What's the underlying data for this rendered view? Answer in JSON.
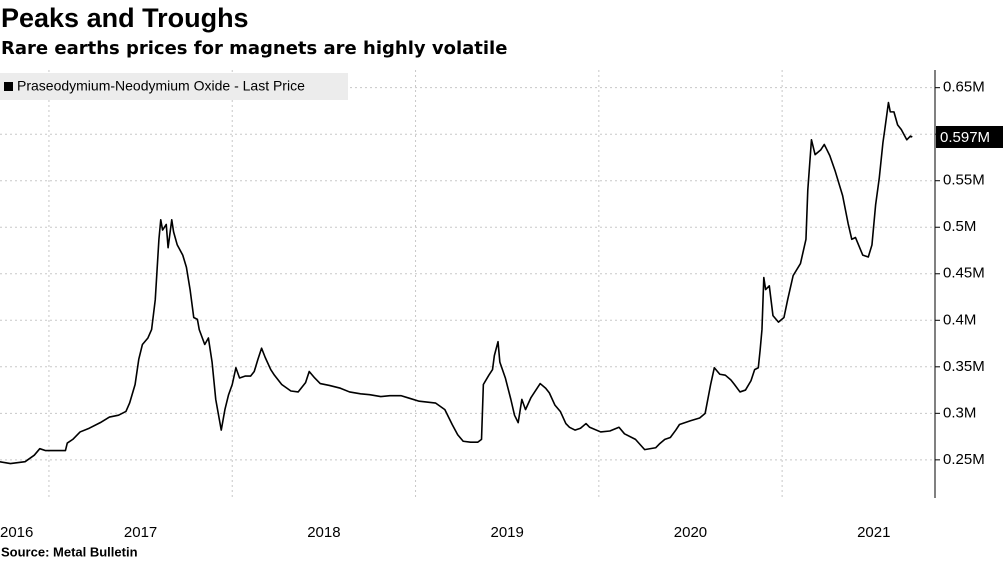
{
  "chart_data": {
    "type": "line",
    "title": "Peaks and Troughs",
    "subtitle": "Rare earths prices for magnets are highly volatile",
    "source": "Source: Metal Bulletin",
    "xlim": [
      2016.733,
      2021.834
    ],
    "xticks": [
      2016,
      2017,
      2018,
      2019,
      2020,
      2021
    ],
    "ylim": [
      209000,
      669000
    ],
    "yticks": [
      {
        "value": 250000,
        "label": "0.25M"
      },
      {
        "value": 300000,
        "label": "0.3M"
      },
      {
        "value": 350000,
        "label": "0.35M"
      },
      {
        "value": 400000,
        "label": "0.4M"
      },
      {
        "value": 450000,
        "label": "0.45M"
      },
      {
        "value": 500000,
        "label": "0.5M"
      },
      {
        "value": 550000,
        "label": "0.55M"
      },
      {
        "value": 600000,
        "label": "0.6M"
      },
      {
        "value": 650000,
        "label": "0.65M"
      }
    ],
    "grid": true,
    "y_axis_side": "right",
    "legend": "top-left",
    "x": [
      2016.73,
      2016.79,
      2016.87,
      2016.92,
      2016.95,
      2016.98,
      2017.01,
      2017.06,
      2017.09,
      2017.1,
      2017.13,
      2017.17,
      2017.22,
      2017.28,
      2017.33,
      2017.38,
      2017.42,
      2017.44,
      2017.47,
      2017.49,
      2017.51,
      2017.54,
      2017.56,
      2017.58,
      2017.6,
      2017.61,
      2017.62,
      2017.64,
      2017.65,
      2017.67,
      2017.68,
      2017.7,
      2017.73,
      2017.75,
      2017.77,
      2017.79,
      2017.81,
      2017.82,
      2017.85,
      2017.87,
      2017.89,
      2017.91,
      2017.93,
      2017.94,
      2017.96,
      2017.98,
      2018.0,
      2018.02,
      2018.04,
      2018.07,
      2018.1,
      2018.12,
      2018.14,
      2018.16,
      2018.18,
      2018.21,
      2018.23,
      2018.27,
      2018.32,
      2018.36,
      2018.4,
      2018.42,
      2018.45,
      2018.48,
      2018.53,
      2018.59,
      2018.64,
      2018.7,
      2018.75,
      2018.81,
      2018.86,
      2018.92,
      2018.97,
      2019.02,
      2019.11,
      2019.16,
      2019.2,
      2019.23,
      2019.26,
      2019.3,
      2019.34,
      2019.36,
      2019.37,
      2019.4,
      2019.42,
      2019.43,
      2019.45,
      2019.46,
      2019.49,
      2019.52,
      2019.54,
      2019.56,
      2019.58,
      2019.6,
      2019.63,
      2019.65,
      2019.68,
      2019.71,
      2019.73,
      2019.76,
      2019.79,
      2019.82,
      2019.84,
      2019.87,
      2019.9,
      2019.93,
      2019.95,
      2020.01,
      2020.06,
      2020.11,
      2020.14,
      2020.2,
      2020.25,
      2020.31,
      2020.33,
      2020.36,
      2020.39,
      2020.42,
      2020.44,
      2020.5,
      2020.55,
      2020.58,
      2020.61,
      2020.63,
      2020.66,
      2020.69,
      2020.72,
      2020.74,
      2020.77,
      2020.8,
      2020.83,
      2020.85,
      2020.87,
      2020.88,
      2020.89,
      2020.9,
      2020.91,
      2020.93,
      2020.95,
      2020.98,
      2021.01,
      2021.03,
      2021.06,
      2021.1,
      2021.13,
      2021.14,
      2021.16,
      2021.18,
      2021.21,
      2021.23,
      2021.26,
      2021.29,
      2021.33,
      2021.36,
      2021.38,
      2021.4,
      2021.44,
      2021.47,
      2021.49,
      2021.51,
      2021.53,
      2021.55,
      2021.56,
      2021.58,
      2021.59,
      2021.61,
      2021.63,
      2021.65,
      2021.68,
      2021.7,
      2021.71
    ],
    "series": [
      {
        "name": "Praseodymium-Neodymium Oxide - Last Price",
        "color": "#000000",
        "last_value_label": "0.597M",
        "values": [
          248000,
          246000,
          248000,
          255000,
          262000,
          260000,
          260000,
          260000,
          260000,
          268000,
          272000,
          280000,
          284000,
          290000,
          296000,
          298000,
          302000,
          311000,
          331000,
          358000,
          374000,
          381000,
          390000,
          422000,
          487000,
          508000,
          497000,
          503000,
          478000,
          508000,
          495000,
          481000,
          470000,
          457000,
          433000,
          403000,
          401000,
          390000,
          374000,
          381000,
          355000,
          315000,
          293000,
          282000,
          304000,
          320000,
          331000,
          349000,
          338000,
          340000,
          340000,
          345000,
          358000,
          370000,
          360000,
          347000,
          341000,
          331000,
          324000,
          323000,
          333000,
          345000,
          338000,
          332000,
          330000,
          327000,
          323000,
          321000,
          320000,
          318000,
          319000,
          319000,
          316000,
          313000,
          311000,
          304000,
          288000,
          277000,
          270000,
          269000,
          269000,
          272000,
          331000,
          341000,
          347000,
          362000,
          377000,
          355000,
          338000,
          315000,
          298000,
          290000,
          315000,
          304000,
          317000,
          323000,
          332000,
          327000,
          322000,
          309000,
          302000,
          289000,
          285000,
          282000,
          284000,
          289000,
          285000,
          280000,
          281000,
          285000,
          278000,
          272000,
          261000,
          263000,
          267000,
          272000,
          274000,
          282000,
          288000,
          292000,
          295000,
          300000,
          331000,
          349000,
          342000,
          341000,
          336000,
          331000,
          323000,
          325000,
          335000,
          347000,
          349000,
          368000,
          390000,
          446000,
          433000,
          437000,
          405000,
          398000,
          403000,
          422000,
          448000,
          461000,
          487000,
          540000,
          594000,
          578000,
          583000,
          589000,
          577000,
          560000,
          534000,
          504000,
          487000,
          489000,
          470000,
          468000,
          481000,
          524000,
          553000,
          591000,
          605000,
          634000,
          624000,
          624000,
          610000,
          605000,
          594000,
          598000,
          597000
        ]
      }
    ]
  }
}
